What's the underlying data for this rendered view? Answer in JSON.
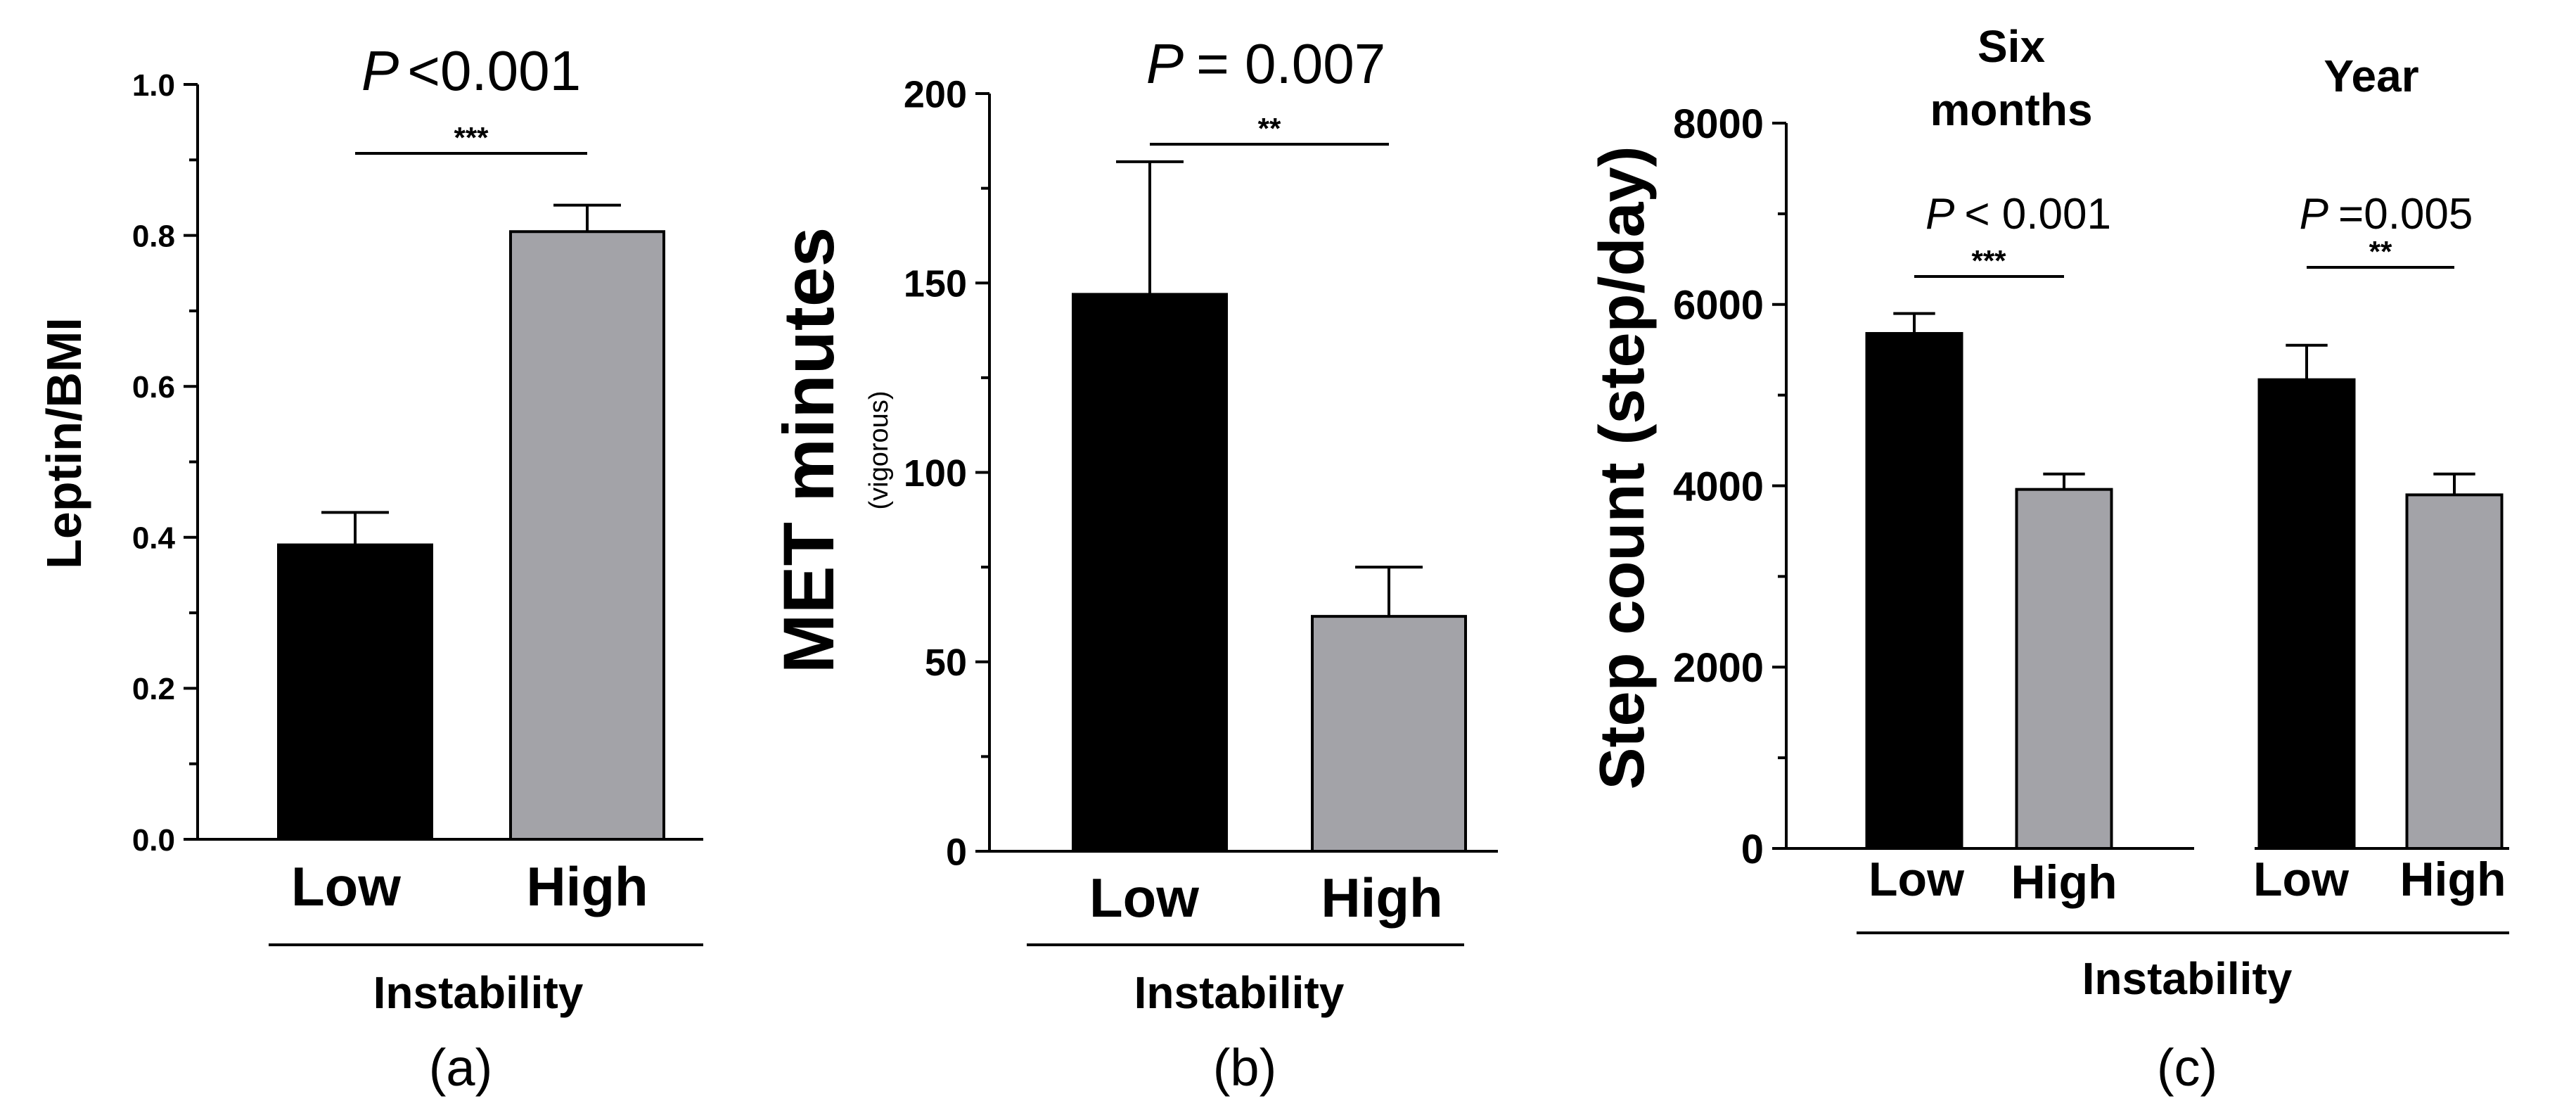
{
  "chart_data": [
    {
      "panel": "(a)",
      "type": "bar",
      "categories": [
        "Low",
        "High"
      ],
      "values": [
        0.39,
        0.805
      ],
      "errors": [
        0.043,
        0.035
      ],
      "colors": [
        "#000000",
        "#a3a3a8"
      ],
      "ylabel": "Leptin/BMI",
      "ylim": [
        0,
        1.0
      ],
      "yticks": [
        0,
        0.2,
        0.4,
        0.6,
        0.8,
        1.0
      ],
      "ytick_labels": [
        "0.0",
        "0.2",
        "0.4",
        "0.6",
        "0.8",
        "1.0"
      ],
      "xlabel": "Instability",
      "p_italic": "P",
      "p_text": "<0.001",
      "stars": "***"
    },
    {
      "panel": "(b)",
      "type": "bar",
      "categories": [
        "Low",
        "High"
      ],
      "values": [
        147,
        62
      ],
      "errors": [
        35,
        13
      ],
      "colors": [
        "#000000",
        "#a3a3a8"
      ],
      "ylabel": "MET minutes",
      "ylabel_sub": "(vigorous)",
      "ylim": [
        0,
        200
      ],
      "yticks": [
        0,
        50,
        100,
        150,
        200
      ],
      "ytick_labels": [
        "0",
        "50",
        "100",
        "150",
        "200"
      ],
      "xlabel": "Instability",
      "p_italic": "P",
      "p_text": "= 0.007",
      "stars": "**"
    },
    {
      "panel": "(c)",
      "type": "bar",
      "ylabel": "Step count (step/day)",
      "ylim": [
        0,
        8000
      ],
      "yticks": [
        0,
        2000,
        4000,
        6000,
        8000
      ],
      "ytick_labels": [
        "0",
        "2000",
        "4000",
        "6000",
        "8000"
      ],
      "xlabel": "Instability",
      "groups": [
        {
          "title_lines": [
            "Six",
            "months"
          ],
          "categories": [
            "Low",
            "High"
          ],
          "values": [
            5680,
            3960
          ],
          "errors": [
            220,
            170
          ],
          "colors": [
            "#000000",
            "#a3a3a8"
          ],
          "p_italic": "P",
          "p_text": "< 0.001",
          "stars": "***"
        },
        {
          "title_lines": [
            "Year"
          ],
          "categories": [
            "Low",
            "High"
          ],
          "values": [
            5170,
            3900
          ],
          "errors": [
            380,
            230
          ],
          "colors": [
            "#000000",
            "#a3a3a8"
          ],
          "p_italic": "P",
          "p_text": "=0.005",
          "stars": "**"
        }
      ]
    }
  ]
}
